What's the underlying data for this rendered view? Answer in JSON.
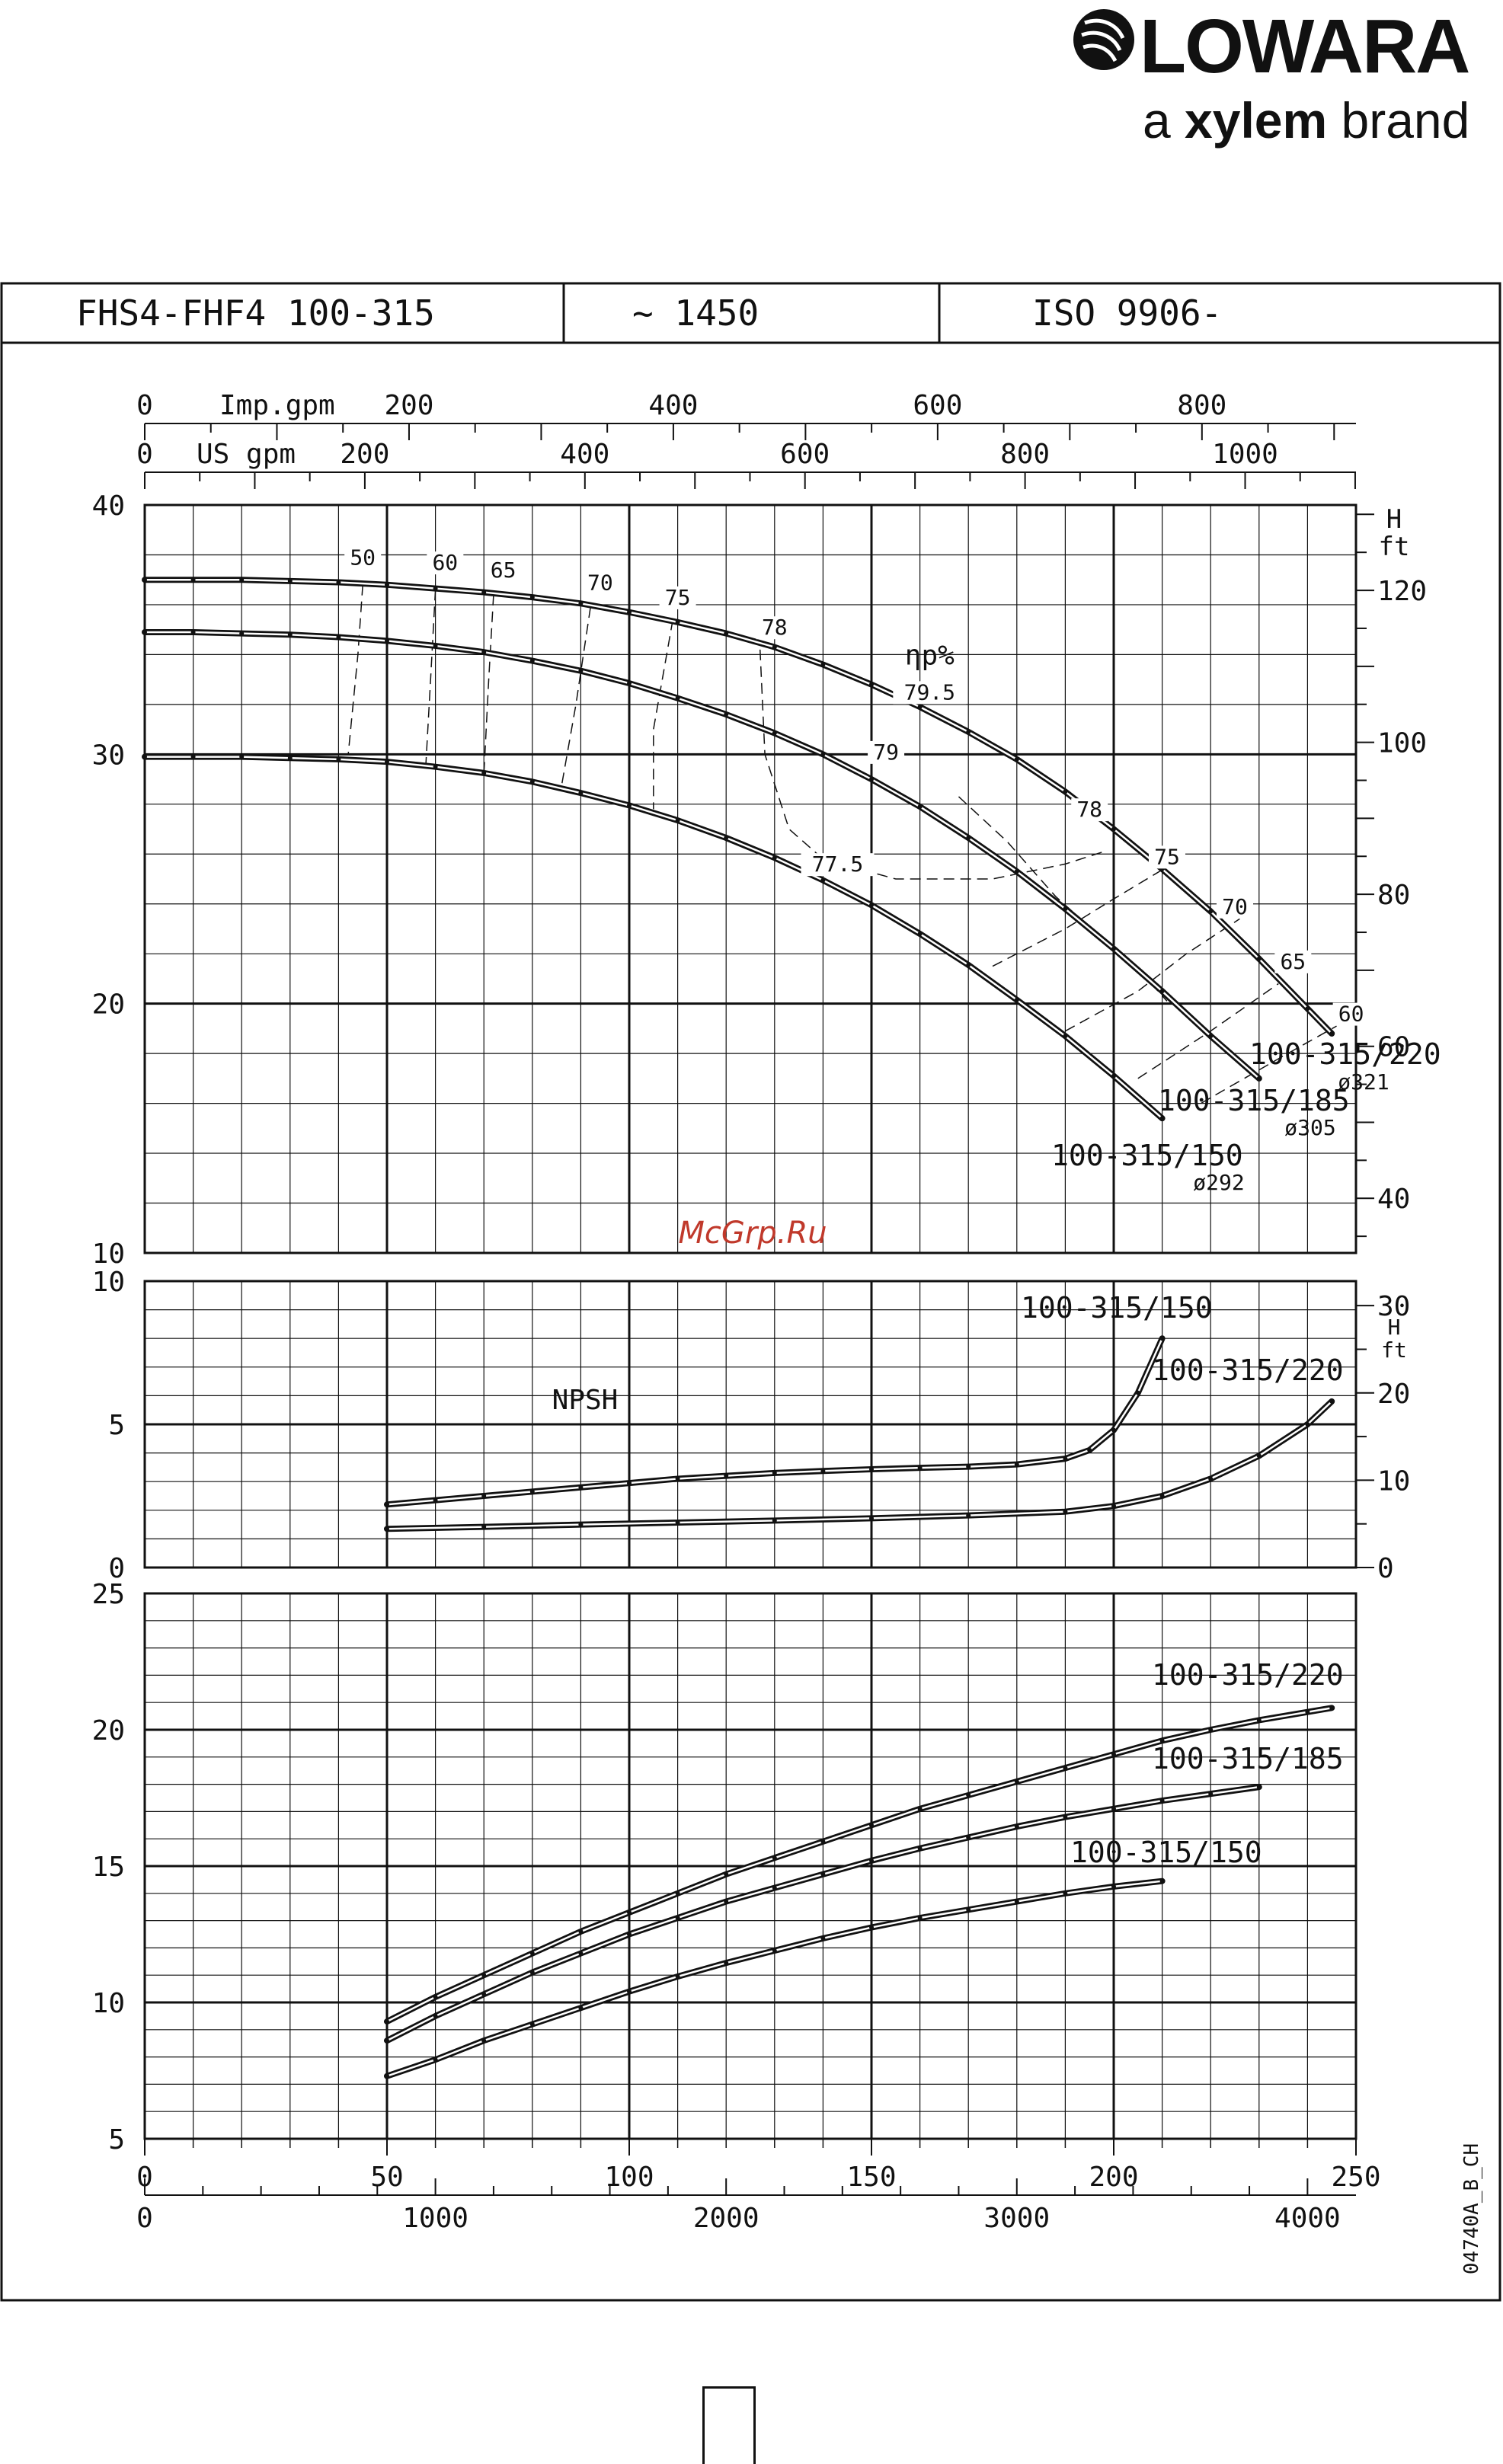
{
  "brand": {
    "name": "LOWARA",
    "tagline_prefix": "a ",
    "tagline_brand": "xylem",
    "tagline_suffix": " brand",
    "logo_icon": "lowara-swirl-icon"
  },
  "header": {
    "model": "FHS4-FHF4 100-315",
    "speed": "~ 1450",
    "standard": "ISO 9906-"
  },
  "watermark": "McGrp.Ru",
  "drawing_code": "04740A_B_CH",
  "chart_data": [
    {
      "type": "line",
      "id": "head",
      "xlim": [
        0,
        250
      ],
      "ylim": [
        10,
        40
      ],
      "yticks": [
        10,
        20,
        30,
        40
      ],
      "right_axis": {
        "label_top": "H",
        "label_bottom": "ft",
        "ticks": [
          40,
          60,
          80,
          100,
          120
        ],
        "ft_per_m": 3.2808
      },
      "top_axes": [
        {
          "label": "US gpm",
          "ticks": [
            0,
            200,
            400,
            600,
            800,
            1000
          ],
          "per_m3h": 4.4029
        },
        {
          "label": "Imp.gpm",
          "ticks": [
            0,
            200,
            400,
            600,
            800
          ],
          "per_m3h": 3.6662
        }
      ],
      "eta_label": "ηp%",
      "series": [
        {
          "name": "100-315/220",
          "diameter": "ø321",
          "x": [
            0,
            10,
            20,
            30,
            40,
            50,
            60,
            70,
            80,
            90,
            100,
            110,
            120,
            130,
            140,
            150,
            160,
            170,
            180,
            190,
            200,
            210,
            220,
            230,
            240,
            245
          ],
          "y": [
            37.0,
            37.0,
            37.0,
            36.95,
            36.9,
            36.8,
            36.65,
            36.5,
            36.3,
            36.05,
            35.7,
            35.3,
            34.85,
            34.3,
            33.6,
            32.8,
            31.9,
            30.9,
            29.8,
            28.5,
            27.0,
            25.4,
            23.7,
            21.8,
            19.8,
            18.8
          ]
        },
        {
          "name": "100-315/185",
          "diameter": "ø305",
          "x": [
            0,
            10,
            20,
            30,
            40,
            50,
            60,
            70,
            80,
            90,
            100,
            110,
            120,
            130,
            140,
            150,
            160,
            170,
            180,
            190,
            200,
            210,
            220,
            230
          ],
          "y": [
            34.9,
            34.9,
            34.85,
            34.8,
            34.7,
            34.55,
            34.35,
            34.1,
            33.75,
            33.35,
            32.85,
            32.25,
            31.6,
            30.85,
            30.0,
            29.0,
            27.9,
            26.65,
            25.3,
            23.8,
            22.2,
            20.5,
            18.7,
            17.0
          ]
        },
        {
          "name": "100-315/150",
          "diameter": "ø292",
          "x": [
            0,
            10,
            20,
            30,
            40,
            50,
            60,
            70,
            80,
            90,
            100,
            110,
            120,
            130,
            140,
            150,
            160,
            170,
            180,
            190,
            200,
            210
          ],
          "y": [
            29.9,
            29.9,
            29.9,
            29.85,
            29.8,
            29.7,
            29.5,
            29.25,
            28.9,
            28.45,
            27.95,
            27.35,
            26.65,
            25.85,
            24.95,
            23.95,
            22.8,
            21.55,
            20.15,
            18.7,
            17.1,
            15.4
          ]
        }
      ],
      "efficiency_labels": [
        {
          "text": "50",
          "x": 45,
          "y": 37.6
        },
        {
          "text": "60",
          "x": 62,
          "y": 37.4
        },
        {
          "text": "65",
          "x": 74,
          "y": 37.1
        },
        {
          "text": "70",
          "x": 94,
          "y": 36.6
        },
        {
          "text": "75",
          "x": 110,
          "y": 36.0
        },
        {
          "text": "78",
          "x": 130,
          "y": 34.8
        },
        {
          "text": "79.5",
          "x": 162,
          "y": 32.2
        },
        {
          "text": "79",
          "x": 153,
          "y": 29.8
        },
        {
          "text": "77.5",
          "x": 143,
          "y": 25.3
        },
        {
          "text": "78",
          "x": 195,
          "y": 27.5
        },
        {
          "text": "75",
          "x": 211,
          "y": 25.6
        },
        {
          "text": "70",
          "x": 225,
          "y": 23.6
        },
        {
          "text": "65",
          "x": 237,
          "y": 21.4
        },
        {
          "text": "60",
          "x": 249,
          "y": 19.3
        }
      ],
      "efficiency_contours": [
        [
          [
            45,
            36.8
          ],
          [
            44,
            34
          ],
          [
            42,
            30.0
          ]
        ],
        [
          [
            60,
            36.6
          ],
          [
            59,
            33
          ],
          [
            58,
            29.5
          ]
        ],
        [
          [
            72,
            36.4
          ],
          [
            71,
            33
          ],
          [
            70,
            29.2
          ]
        ],
        [
          [
            92,
            35.9
          ],
          [
            89,
            32
          ],
          [
            86,
            28.7
          ]
        ],
        [
          [
            109,
            35.4
          ],
          [
            105,
            31
          ],
          [
            105,
            27.8
          ]
        ],
        [
          [
            127,
            34.2
          ],
          [
            128,
            30
          ],
          [
            133,
            27.0
          ],
          [
            140,
            25.8
          ],
          [
            155,
            25.0
          ],
          [
            175,
            25.0
          ],
          [
            190,
            25.6
          ],
          [
            198,
            26.1
          ]
        ],
        [
          [
            168,
            28.3
          ],
          [
            178,
            26.5
          ],
          [
            188,
            24.3
          ],
          [
            196,
            22.9
          ],
          [
            204,
            21.6
          ],
          [
            211,
            20.1
          ]
        ],
        [
          [
            175,
            21.5
          ],
          [
            190,
            23.0
          ],
          [
            200,
            24.2
          ],
          [
            212,
            25.6
          ]
        ],
        [
          [
            190,
            18.9
          ],
          [
            205,
            20.5
          ],
          [
            215,
            22.0
          ],
          [
            226,
            23.4
          ]
        ],
        [
          [
            205,
            17.0
          ],
          [
            220,
            18.9
          ],
          [
            234,
            20.8
          ]
        ],
        [
          [
            218,
            16.0
          ],
          [
            235,
            17.9
          ],
          [
            246,
            19.1
          ]
        ]
      ]
    },
    {
      "type": "line",
      "id": "npsh",
      "label": "NPSH",
      "xlim": [
        0,
        250
      ],
      "ylim": [
        0,
        10
      ],
      "yticks": [
        0,
        5,
        10
      ],
      "right_axis": {
        "label_top": "H",
        "label_bottom": "ft",
        "ticks": [
          0,
          10,
          20,
          30
        ],
        "ft_per_m": 3.2808
      },
      "series": [
        {
          "name": "100-315/150",
          "x": [
            50,
            60,
            70,
            80,
            90,
            100,
            110,
            120,
            130,
            140,
            150,
            160,
            170,
            180,
            190,
            195,
            200,
            205,
            210
          ],
          "y": [
            2.2,
            2.35,
            2.5,
            2.65,
            2.8,
            2.95,
            3.1,
            3.2,
            3.3,
            3.37,
            3.43,
            3.48,
            3.52,
            3.6,
            3.8,
            4.1,
            4.8,
            6.1,
            8.0
          ]
        },
        {
          "name": "100-315/220",
          "x": [
            50,
            70,
            90,
            110,
            130,
            150,
            170,
            190,
            200,
            210,
            220,
            230,
            240,
            245
          ],
          "y": [
            1.35,
            1.42,
            1.5,
            1.57,
            1.64,
            1.72,
            1.82,
            1.95,
            2.15,
            2.5,
            3.1,
            3.9,
            5.0,
            5.8
          ]
        }
      ]
    },
    {
      "type": "line",
      "id": "power",
      "xlim": [
        0,
        250
      ],
      "ylim": [
        5,
        25
      ],
      "yticks": [
        5,
        10,
        15,
        20,
        25
      ],
      "xticks": [
        0,
        50,
        100,
        150,
        200,
        250
      ],
      "bottom_axis2": {
        "ticks": [
          0,
          1000,
          2000,
          3000,
          4000
        ],
        "per_m3h": 16.667
      },
      "series": [
        {
          "name": "100-315/220",
          "x": [
            50,
            60,
            70,
            80,
            90,
            100,
            110,
            120,
            130,
            140,
            150,
            160,
            170,
            180,
            190,
            200,
            210,
            220,
            230,
            240,
            245
          ],
          "y": [
            9.3,
            10.2,
            11.0,
            11.8,
            12.6,
            13.3,
            14.0,
            14.7,
            15.3,
            15.9,
            16.5,
            17.1,
            17.6,
            18.1,
            18.6,
            19.1,
            19.6,
            20.0,
            20.35,
            20.65,
            20.8
          ]
        },
        {
          "name": "100-315/185",
          "x": [
            50,
            60,
            70,
            80,
            90,
            100,
            110,
            120,
            130,
            140,
            150,
            160,
            170,
            180,
            190,
            200,
            210,
            220,
            230
          ],
          "y": [
            8.6,
            9.5,
            10.3,
            11.1,
            11.8,
            12.5,
            13.1,
            13.7,
            14.2,
            14.7,
            15.2,
            15.65,
            16.05,
            16.45,
            16.8,
            17.1,
            17.4,
            17.65,
            17.9
          ]
        },
        {
          "name": "100-315/150",
          "x": [
            50,
            60,
            70,
            80,
            90,
            100,
            110,
            120,
            130,
            140,
            150,
            160,
            170,
            180,
            190,
            200,
            210
          ],
          "y": [
            7.3,
            7.9,
            8.6,
            9.2,
            9.8,
            10.4,
            10.95,
            11.45,
            11.9,
            12.35,
            12.75,
            13.1,
            13.4,
            13.7,
            14.0,
            14.25,
            14.45
          ]
        }
      ]
    }
  ]
}
